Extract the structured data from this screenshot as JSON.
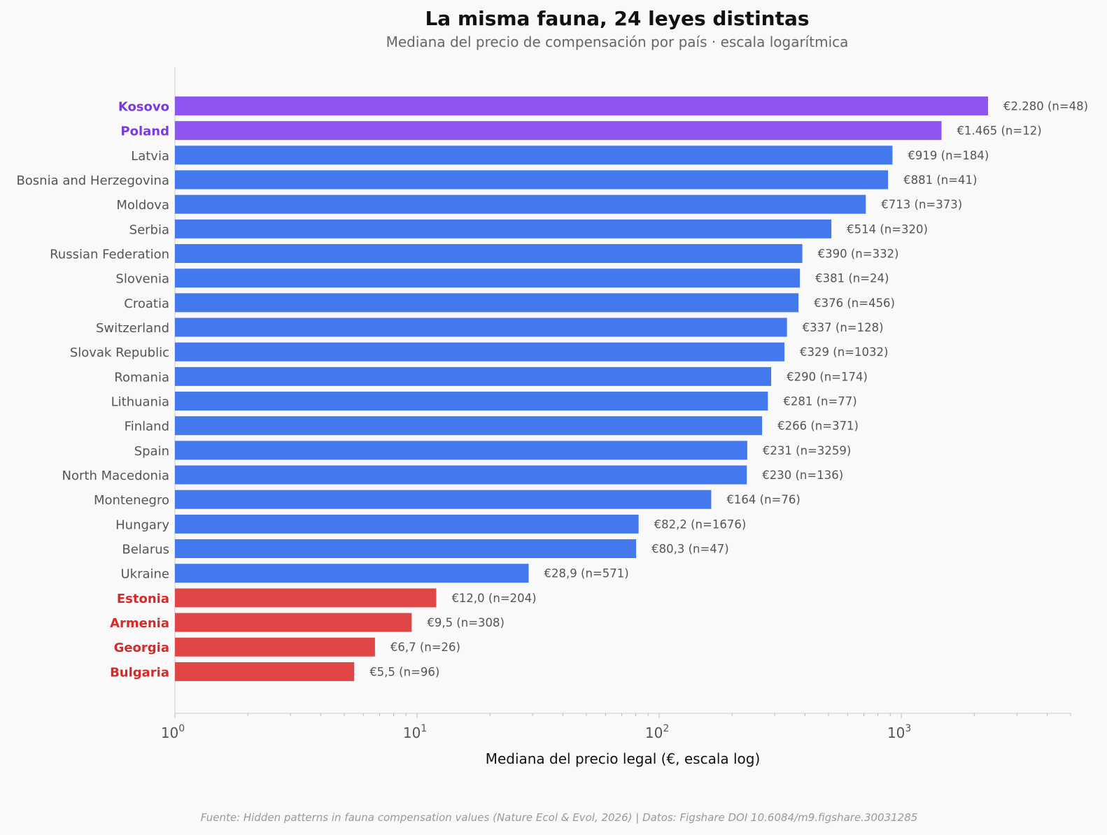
{
  "title": "La misma fauna, 24 leyes distintas",
  "subtitle": "Mediana del precio de compensación por país · escala logarítmica",
  "xlabel": "Mediana del precio legal (€, escala log)",
  "source": "Fuente: Hidden patterns in fauna compensation values (Nature Ecol & Evol, 2026) | Datos: Figshare DOI 10.6084/m9.figshare.30031285",
  "colors": {
    "high": "#8e56ef",
    "high_label": "#7b3ae0",
    "mid": "#4479ee",
    "low": "#e04646",
    "low_label": "#d62a2a",
    "neutral_label": "#555555",
    "value_label": "#555555"
  },
  "chart_data": {
    "type": "bar",
    "orientation": "horizontal",
    "x_scale": "log",
    "xlim": [
      1,
      5000
    ],
    "xticks": [
      {
        "base": "10",
        "exp": "0"
      },
      {
        "base": "10",
        "exp": "1"
      },
      {
        "base": "10",
        "exp": "2"
      },
      {
        "base": "10",
        "exp": "3"
      }
    ],
    "grid": false,
    "categories": [
      "Kosovo",
      "Poland",
      "Latvia",
      "Bosnia and Herzegovina",
      "Moldova",
      "Serbia",
      "Russian Federation",
      "Slovenia",
      "Croatia",
      "Switzerland",
      "Slovak Republic",
      "Romania",
      "Lithuania",
      "Finland",
      "Spain",
      "North Macedonia",
      "Montenegro",
      "Hungary",
      "Belarus",
      "Ukraine",
      "Estonia",
      "Armenia",
      "Georgia",
      "Bulgaria"
    ],
    "values": [
      2280,
      1465,
      919,
      881,
      713,
      514,
      390,
      381,
      376,
      337,
      329,
      290,
      281,
      266,
      231,
      230,
      164,
      82.2,
      80.3,
      28.9,
      12.0,
      9.5,
      6.7,
      5.5
    ],
    "groups": [
      "high",
      "high",
      "mid",
      "mid",
      "mid",
      "mid",
      "mid",
      "mid",
      "mid",
      "mid",
      "mid",
      "mid",
      "mid",
      "mid",
      "mid",
      "mid",
      "mid",
      "mid",
      "mid",
      "mid",
      "low",
      "low",
      "low",
      "low"
    ],
    "value_labels": [
      "€2.280  (n=48)",
      "€1.465  (n=12)",
      "€919  (n=184)",
      "€881  (n=41)",
      "€713  (n=373)",
      "€514  (n=320)",
      "€390  (n=332)",
      "€381  (n=24)",
      "€376  (n=456)",
      "€337  (n=128)",
      "€329  (n=1032)",
      "€290  (n=174)",
      "€281  (n=77)",
      "€266  (n=371)",
      "€231  (n=3259)",
      "€230  (n=136)",
      "€164  (n=76)",
      "€82,2  (n=1676)",
      "€80,3  (n=47)",
      "€28,9  (n=571)",
      "€12,0  (n=204)",
      "€9,5  (n=308)",
      "€6,7  (n=26)",
      "€5,5  (n=96)"
    ]
  }
}
